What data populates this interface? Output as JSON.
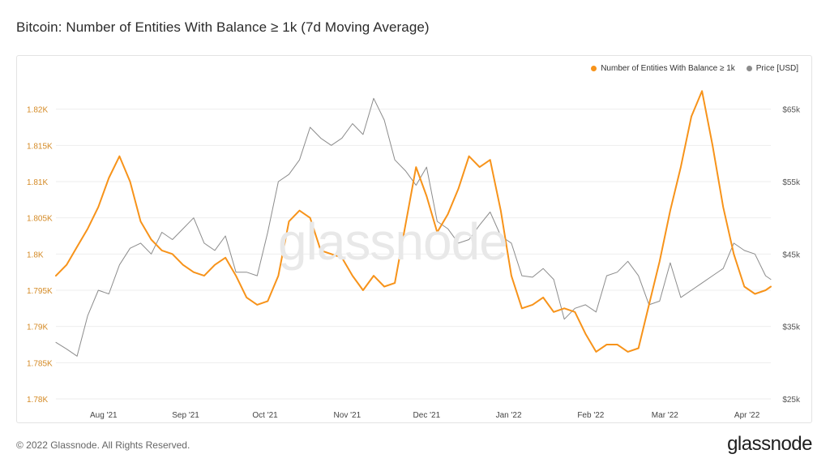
{
  "page": {
    "title": "Bitcoin: Number of Entities With Balance ≥ 1k (7d Moving Average)",
    "copyright": "© 2022 Glassnode. All Rights Reserved.",
    "brand": "glassnode",
    "watermark": "glassnode"
  },
  "colors": {
    "entities": "#f7931a",
    "price": "#8c8c8c",
    "left_axis_text": "#d48a25",
    "right_axis_text": "#555555",
    "grid": "#eeeeee"
  },
  "chart_data": {
    "type": "line",
    "title": "Bitcoin: Number of Entities With Balance ≥ 1k (7d Moving Average)",
    "legend_position": "top-right",
    "grid": true,
    "x_ticks": [
      "Aug '21",
      "Sep '21",
      "Oct '21",
      "Nov '21",
      "Dec '21",
      "Jan '22",
      "Feb '22",
      "Mar '22",
      "Apr '22"
    ],
    "x_range": [
      "2021-07-14",
      "2022-04-10"
    ],
    "y_left": {
      "ticks": [
        "1.78K",
        "1.785K",
        "1.79K",
        "1.795K",
        "1.8K",
        "1.805K",
        "1.81K",
        "1.815K",
        "1.82K"
      ],
      "range": [
        1780,
        1825
      ]
    },
    "y_right": {
      "ticks": [
        "$25k",
        "$35k",
        "$45k",
        "$55k",
        "$65k"
      ],
      "range": [
        25000,
        70000
      ]
    },
    "series": [
      {
        "name": "Number of Entities With Balance ≥ 1k",
        "axis": "left",
        "x": [
          "2021-07-14",
          "2021-07-18",
          "2021-07-22",
          "2021-07-26",
          "2021-07-30",
          "2021-08-03",
          "2021-08-07",
          "2021-08-11",
          "2021-08-15",
          "2021-08-19",
          "2021-08-23",
          "2021-08-27",
          "2021-08-31",
          "2021-09-04",
          "2021-09-08",
          "2021-09-12",
          "2021-09-16",
          "2021-09-20",
          "2021-09-24",
          "2021-09-28",
          "2021-10-02",
          "2021-10-06",
          "2021-10-10",
          "2021-10-14",
          "2021-10-18",
          "2021-10-22",
          "2021-10-26",
          "2021-10-30",
          "2021-11-03",
          "2021-11-07",
          "2021-11-11",
          "2021-11-15",
          "2021-11-19",
          "2021-11-23",
          "2021-11-27",
          "2021-12-01",
          "2021-12-05",
          "2021-12-09",
          "2021-12-13",
          "2021-12-17",
          "2021-12-21",
          "2021-12-25",
          "2021-12-29",
          "2022-01-02",
          "2022-01-06",
          "2022-01-10",
          "2022-01-14",
          "2022-01-18",
          "2022-01-22",
          "2022-01-26",
          "2022-01-30",
          "2022-02-03",
          "2022-02-07",
          "2022-02-11",
          "2022-02-15",
          "2022-02-19",
          "2022-02-23",
          "2022-02-27",
          "2022-03-03",
          "2022-03-07",
          "2022-03-11",
          "2022-03-15",
          "2022-03-19",
          "2022-03-23",
          "2022-03-27",
          "2022-03-31",
          "2022-04-04",
          "2022-04-08",
          "2022-04-10"
        ],
        "values": [
          1797.0,
          1798.5,
          1801.0,
          1803.5,
          1806.5,
          1810.5,
          1813.5,
          1810.0,
          1804.5,
          1802.0,
          1800.5,
          1800.0,
          1798.5,
          1797.5,
          1797.0,
          1798.5,
          1799.5,
          1797.0,
          1794.0,
          1793.0,
          1793.5,
          1797.0,
          1804.5,
          1806.0,
          1805.0,
          1800.5,
          1800.0,
          1799.5,
          1797.0,
          1795.0,
          1797.0,
          1795.5,
          1796.0,
          1804.0,
          1812.0,
          1808.0,
          1803.0,
          1805.5,
          1809.0,
          1813.5,
          1812.0,
          1813.0,
          1806.0,
          1797.0,
          1792.5,
          1793.0,
          1794.0,
          1792.0,
          1792.5,
          1792.0,
          1789.0,
          1786.5,
          1787.5,
          1787.5,
          1786.5,
          1787.0,
          1793.0,
          1799.0,
          1806.0,
          1812.0,
          1819.0,
          1822.5,
          1815.0,
          1806.5,
          1800.0,
          1795.5,
          1794.5,
          1795.0,
          1795.5
        ]
      },
      {
        "name": "Price [USD]",
        "axis": "right",
        "x": [
          "2021-07-14",
          "2021-07-18",
          "2021-07-22",
          "2021-07-26",
          "2021-07-30",
          "2021-08-03",
          "2021-08-07",
          "2021-08-11",
          "2021-08-15",
          "2021-08-19",
          "2021-08-23",
          "2021-08-27",
          "2021-08-31",
          "2021-09-04",
          "2021-09-08",
          "2021-09-12",
          "2021-09-16",
          "2021-09-20",
          "2021-09-24",
          "2021-09-28",
          "2021-10-02",
          "2021-10-06",
          "2021-10-10",
          "2021-10-14",
          "2021-10-18",
          "2021-10-22",
          "2021-10-26",
          "2021-10-30",
          "2021-11-03",
          "2021-11-07",
          "2021-11-11",
          "2021-11-15",
          "2021-11-19",
          "2021-11-23",
          "2021-11-27",
          "2021-12-01",
          "2021-12-05",
          "2021-12-09",
          "2021-12-13",
          "2021-12-17",
          "2021-12-21",
          "2021-12-25",
          "2021-12-29",
          "2022-01-02",
          "2022-01-06",
          "2022-01-10",
          "2022-01-14",
          "2022-01-18",
          "2022-01-22",
          "2022-01-26",
          "2022-01-30",
          "2022-02-03",
          "2022-02-07",
          "2022-02-11",
          "2022-02-15",
          "2022-02-19",
          "2022-02-23",
          "2022-02-27",
          "2022-03-03",
          "2022-03-07",
          "2022-03-11",
          "2022-03-15",
          "2022-03-19",
          "2022-03-23",
          "2022-03-27",
          "2022-03-31",
          "2022-04-04",
          "2022-04-08",
          "2022-04-10"
        ],
        "values": [
          32800,
          31900,
          30900,
          36500,
          40000,
          39500,
          43500,
          45800,
          46500,
          45000,
          48000,
          47000,
          48500,
          50000,
          46500,
          45500,
          47500,
          42500,
          42500,
          42000,
          48000,
          55000,
          56000,
          58000,
          62500,
          61000,
          60000,
          61000,
          63000,
          61500,
          66500,
          63500,
          58000,
          56500,
          54500,
          57000,
          49500,
          48500,
          46500,
          47000,
          49000,
          50800,
          47500,
          46500,
          42000,
          41800,
          43000,
          41500,
          36000,
          37500,
          38000,
          37000,
          42000,
          42500,
          44000,
          42000,
          38000,
          38500,
          43800,
          39000,
          40000,
          41000,
          42000,
          43000,
          46500,
          45500,
          45000,
          42000,
          41500
        ]
      }
    ]
  }
}
